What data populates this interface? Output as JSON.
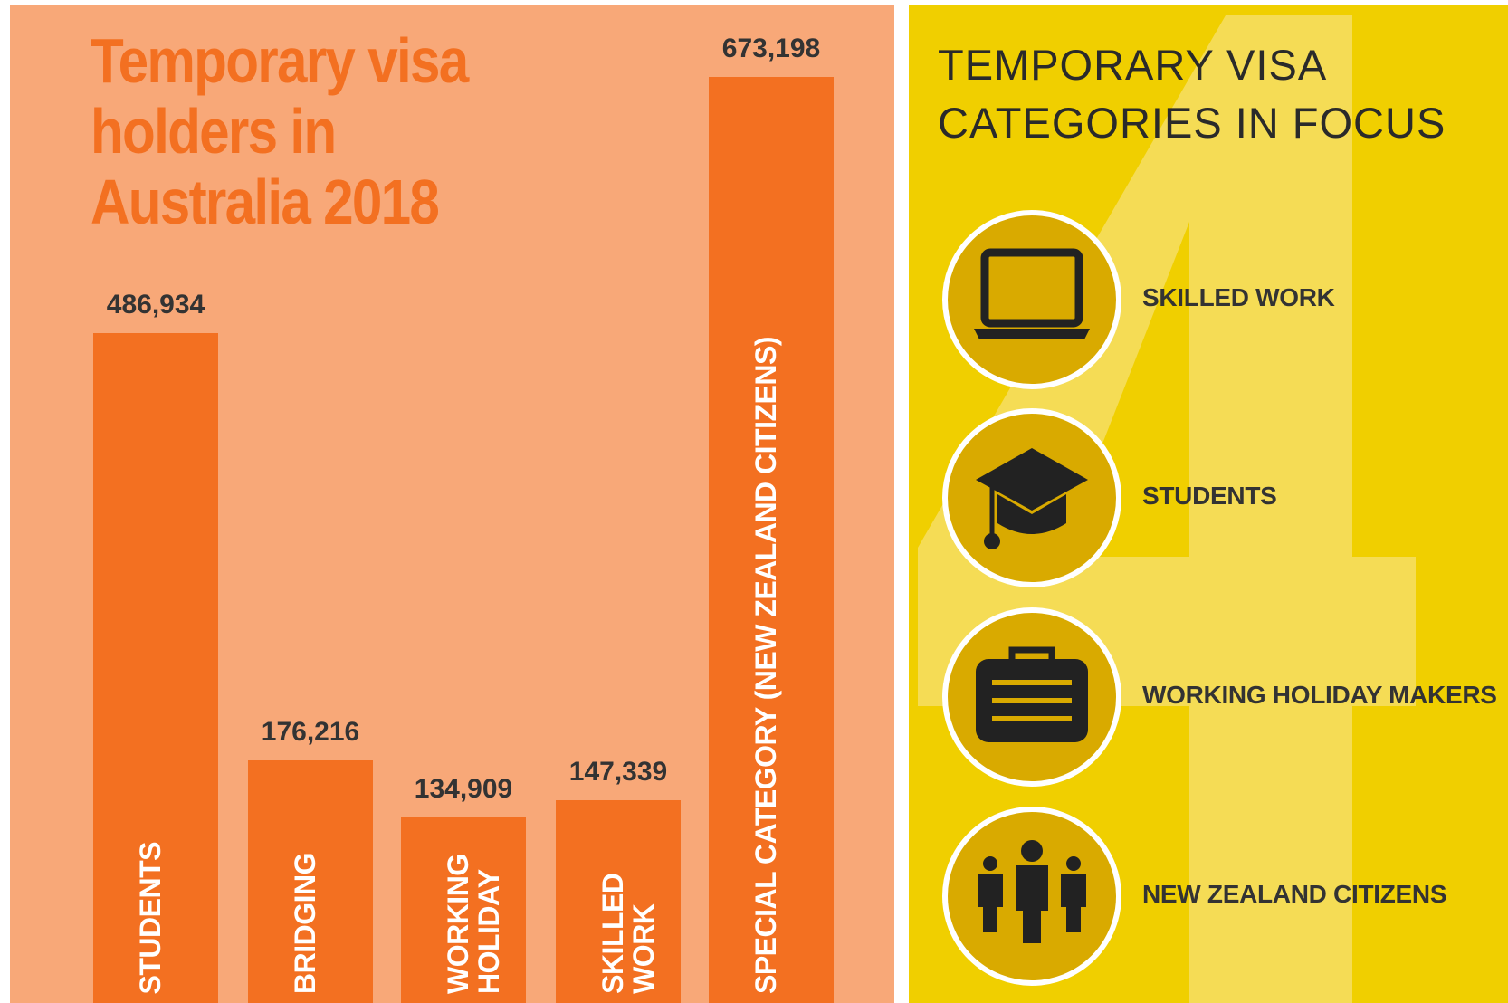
{
  "chart_data": {
    "type": "bar",
    "title": "Temporary visa holders in Australia 2018",
    "categories": [
      "STUDENTS",
      "BRIDGING",
      "WORKING HOLIDAY",
      "SKILLED WORK",
      "SPECIAL CATEGORY (NEW ZEALAND CITIZENS)"
    ],
    "values": [
      486934,
      176216,
      134909,
      147339,
      673198
    ],
    "value_labels": [
      "486,934",
      "176,216",
      "134,909",
      "147,339",
      "673,198"
    ],
    "color": "#f37021"
  },
  "focus": {
    "title": "TEMPORARY VISA CATEGORIES IN FOCUS",
    "items": [
      "SKILLED WORK",
      "STUDENTS",
      "WORKING HOLIDAY MAKERS",
      "NEW ZEALAND CITIZENS"
    ]
  }
}
